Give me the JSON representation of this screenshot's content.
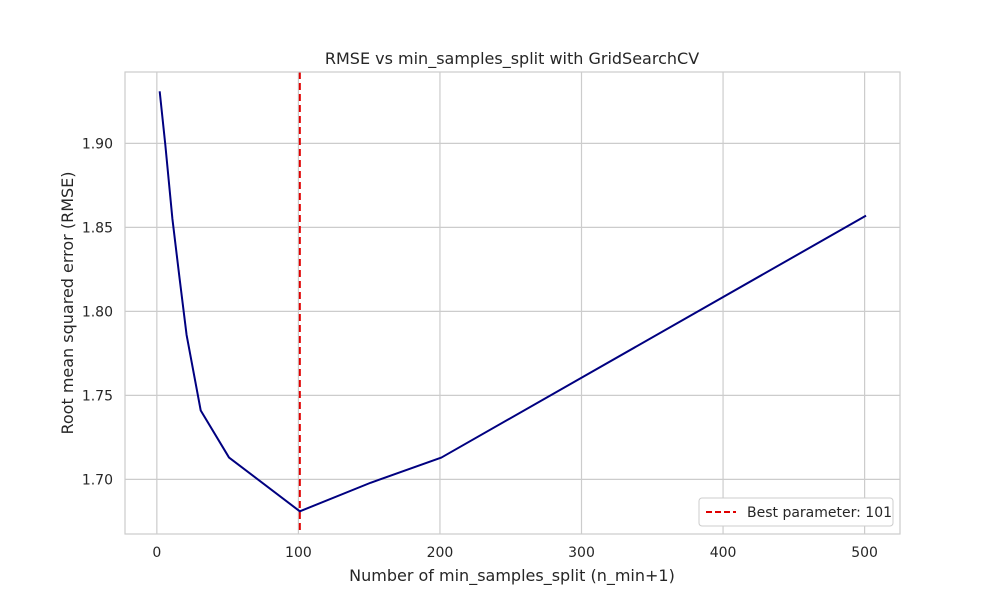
{
  "chart_data": {
    "type": "line",
    "title": "RMSE vs min_samples_split with GridSearchCV",
    "xlabel": "Number of min_samples_split (n_min+1)",
    "ylabel": "Root mean squared error (RMSE)",
    "xlim": [
      -22.5,
      525
    ],
    "ylim": [
      1.6675,
      1.9425
    ],
    "xticks": [
      0,
      100,
      200,
      300,
      400,
      500
    ],
    "yticks": [
      1.7,
      1.75,
      1.8,
      1.85,
      1.9
    ],
    "xtick_labels": [
      "0",
      "100",
      "200",
      "300",
      "400",
      "500"
    ],
    "ytick_labels": [
      "1.70",
      "1.75",
      "1.80",
      "1.85",
      "1.90"
    ],
    "grid": true,
    "legend_position": "lower-right",
    "series": [
      {
        "color": "#000080",
        "x": [
          2,
          6,
          11,
          16,
          21,
          31,
          51,
          101,
          151,
          201,
          501
        ],
        "y": [
          1.931,
          1.899,
          1.855,
          1.82,
          1.786,
          1.741,
          1.713,
          1.681,
          1.698,
          1.713,
          1.857
        ]
      }
    ],
    "reference_line": {
      "x": 101,
      "color": "#e00000",
      "style": "dashed",
      "label": "Best parameter: 101"
    }
  }
}
